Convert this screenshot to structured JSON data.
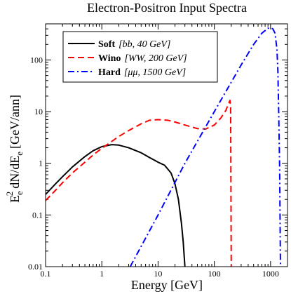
{
  "chart_data": {
    "type": "line",
    "title": "Electron-Positron Input Spectra",
    "xlabel": "Energy [GeV]",
    "ylabel": "E_e^2 dN/dE_e [GeV/ann]",
    "xscale": "log",
    "yscale": "log",
    "xlim": [
      0.1,
      2000
    ],
    "ylim": [
      0.01,
      500
    ],
    "x_ticks": [
      {
        "value": 0.1,
        "label": "0.1"
      },
      {
        "value": 1,
        "label": "1"
      },
      {
        "value": 10,
        "label": "10"
      },
      {
        "value": 100,
        "label": "100"
      },
      {
        "value": 1000,
        "label": "1000"
      }
    ],
    "y_ticks": [
      {
        "value": 0.01,
        "label": "0.01"
      },
      {
        "value": 0.1,
        "label": "0.1"
      },
      {
        "value": 1,
        "label": "1"
      },
      {
        "value": 10,
        "label": "10"
      },
      {
        "value": 100,
        "label": "100"
      }
    ],
    "legend_position": "top-left",
    "series": [
      {
        "name": "Soft",
        "legend_detail": "[bb, 40 GeV]",
        "color": "#000000",
        "style": "solid",
        "x": [
          0.1,
          0.15,
          0.2,
          0.3,
          0.5,
          0.7,
          1.0,
          1.5,
          2.0,
          3.0,
          5.0,
          7.0,
          10,
          13,
          17,
          20,
          23,
          26,
          28,
          30
        ],
        "y": [
          0.25,
          0.4,
          0.55,
          0.85,
          1.35,
          1.75,
          2.1,
          2.3,
          2.25,
          2.0,
          1.6,
          1.3,
          1.05,
          0.92,
          0.65,
          0.4,
          0.2,
          0.07,
          0.03,
          0.01
        ]
      },
      {
        "name": "Wino",
        "legend_detail": "[WW, 200 GeV]",
        "color": "#ff0000",
        "style": "dashed",
        "x": [
          0.1,
          0.15,
          0.2,
          0.3,
          0.5,
          0.7,
          1.0,
          2.0,
          3.0,
          5.0,
          7.0,
          10,
          15,
          20,
          30,
          50,
          70,
          100,
          130,
          160,
          180,
          190,
          195,
          200
        ],
        "y": [
          0.19,
          0.3,
          0.42,
          0.65,
          1.05,
          1.45,
          1.95,
          3.3,
          4.3,
          5.8,
          6.8,
          7.0,
          6.8,
          6.3,
          5.5,
          4.7,
          4.6,
          5.5,
          7.5,
          10.5,
          14.5,
          16.5,
          12,
          0.01
        ]
      },
      {
        "name": "Hard",
        "legend_detail": "[μμ, 1500 GeV]",
        "color": "#0000ff",
        "style": "dashdot",
        "x": [
          3.2,
          10,
          30,
          100,
          300,
          500,
          700,
          900,
          1000,
          1100,
          1200,
          1300,
          1350,
          1400,
          1450,
          1500
        ],
        "y": [
          0.01,
          0.1,
          1.0,
          10,
          80,
          200,
          330,
          410,
          420,
          400,
          330,
          160,
          60,
          8,
          0.8,
          0.01
        ]
      }
    ]
  }
}
